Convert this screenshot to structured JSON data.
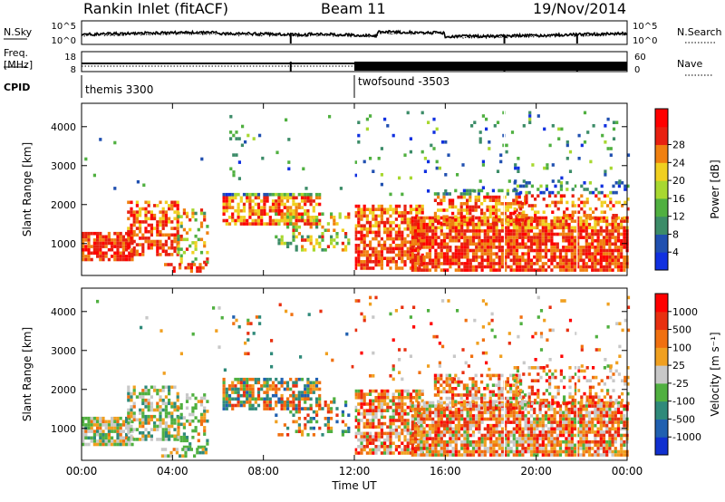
{
  "header": {
    "station": "Rankin Inlet (fitACF)",
    "beam": "Beam 11",
    "date": "19/Nov/2014"
  },
  "top_panel": {
    "left_label": "N.Sky",
    "right_label": "N.Search",
    "log_ticks": [
      "10^5",
      "10^0"
    ]
  },
  "freq_panel": {
    "left_label_1": "Freq.",
    "left_label_2": "[MHz]",
    "left_ticks": [
      "18",
      "8"
    ],
    "right_label": "Nave",
    "right_ticks": [
      "60",
      "0"
    ]
  },
  "cpid": {
    "label": "CPID",
    "modes": [
      "themis 3300",
      "twofsound -3503"
    ]
  },
  "axes": {
    "ylabel": "Slant Range [km]",
    "xlabel": "Time UT",
    "y_ticks": [
      "1000",
      "2000",
      "3000",
      "4000"
    ],
    "x_ticks": [
      "00:00",
      "04:00",
      "08:00",
      "12:00",
      "16:00",
      "20:00",
      "00:00"
    ]
  },
  "chart_data": [
    {
      "type": "heatmap",
      "title": "",
      "xlabel": "Time UT",
      "ylabel": "Slant Range [km]",
      "xlim": [
        0,
        24
      ],
      "ylim": [
        180,
        4600
      ],
      "colorbar": {
        "label": "Power [dB]",
        "ticks": [
          "4",
          "8",
          "12",
          "16",
          "20",
          "24",
          "28"
        ],
        "colors": [
          "#1030e0",
          "#2050b0",
          "#3c8c68",
          "#50b040",
          "#a8d830",
          "#f0d020",
          "#f08010",
          "#e82010",
          "#ff0000"
        ]
      }
    },
    {
      "type": "heatmap",
      "title": "",
      "xlabel": "Time UT",
      "ylabel": "Slant Range [km]",
      "xlim": [
        0,
        24
      ],
      "ylim": [
        180,
        4600
      ],
      "colorbar": {
        "label": "Velocity [m s⁻¹]",
        "ticks": [
          "1000",
          "500",
          "100",
          "25",
          "-25",
          "-100",
          "-500",
          "-1000"
        ],
        "colors": [
          "#1030d0",
          "#2060b0",
          "#2f8a7a",
          "#50b040",
          "#c8c8c8",
          "#f0a020",
          "#f07010",
          "#e83010",
          "#ff0000"
        ]
      }
    }
  ]
}
